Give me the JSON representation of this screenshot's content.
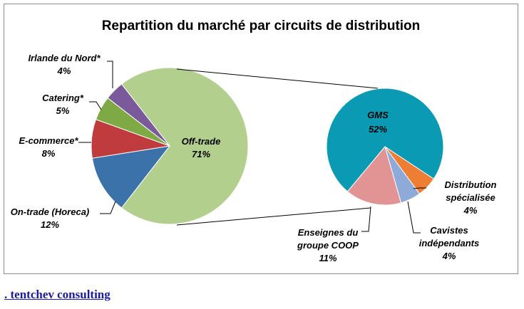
{
  "chart_data": {
    "type": "pie-of-pie",
    "title": "Repartition du marché par circuits de distribution",
    "primary": [
      {
        "name": "Off-trade",
        "value": 71,
        "label": "71%",
        "color": "#b3cf8e"
      },
      {
        "name": "On-trade (Horeca)",
        "value": 12,
        "label": "12%",
        "color": "#3a72a9"
      },
      {
        "name": "E-commerce*",
        "value": 8,
        "label": "8%",
        "color": "#c03b3d"
      },
      {
        "name": "Catering*",
        "value": 5,
        "label": "5%",
        "color": "#7ea944"
      },
      {
        "name": "Irlande du Nord*",
        "value": 4,
        "label": "4%",
        "color": "#7b5a9c"
      }
    ],
    "secondary": [
      {
        "name": "GMS",
        "value": 52,
        "label": "52%",
        "color": "#0a9ab3"
      },
      {
        "name": "Distribution spécialisée",
        "name_lines": [
          "Distribution",
          "spécialisée"
        ],
        "value": 4,
        "label": "4%",
        "color": "#ee7e33"
      },
      {
        "name": "Cavistes indépendants",
        "name_lines": [
          "Cavistes",
          "indépendants"
        ],
        "value": 4,
        "label": "4%",
        "color": "#8eaad8"
      },
      {
        "name": "Enseignes du groupe COOP",
        "name_lines": [
          "Enseignes du",
          "groupe COOP"
        ],
        "value": 11,
        "label": "11%",
        "color": "#e29394"
      }
    ]
  },
  "footer": {
    "link": ". tentchev consulting "
  }
}
